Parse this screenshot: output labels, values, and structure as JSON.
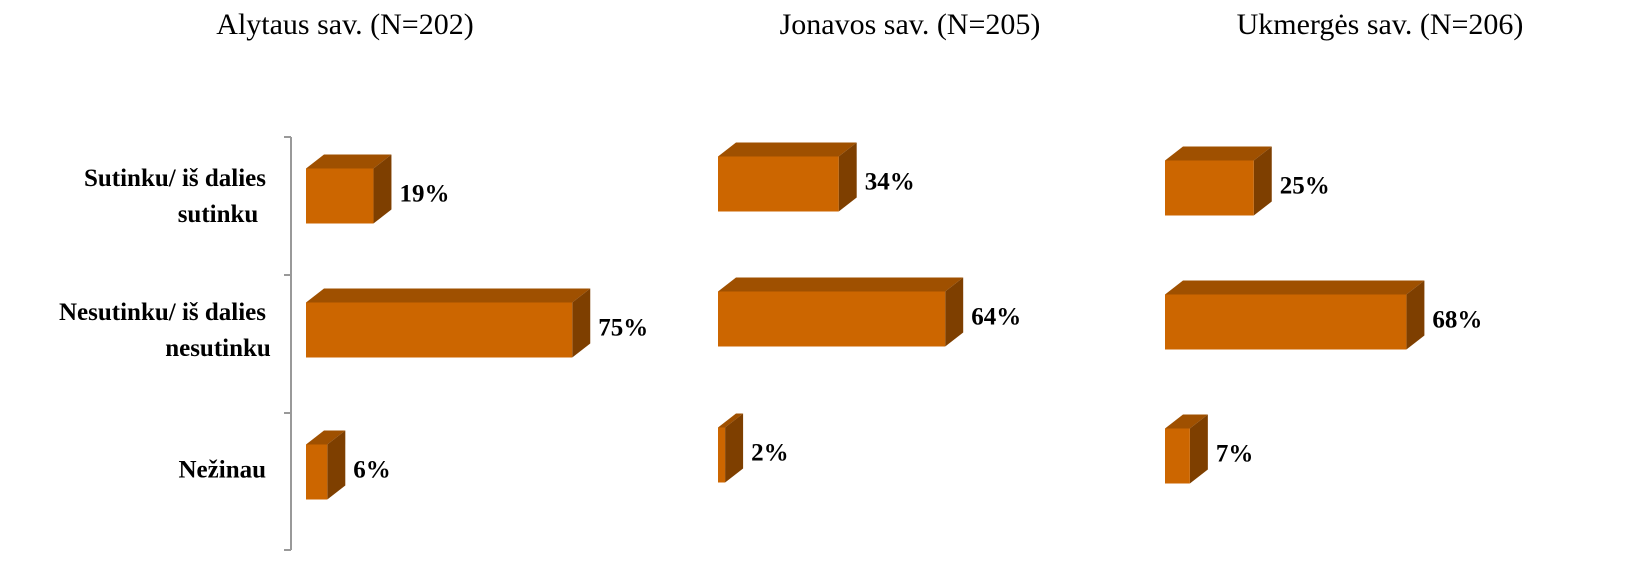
{
  "chart_data": [
    {
      "type": "bar3d",
      "title": "Alytaus sav. (N=202)",
      "categories": [
        "Sutinku/ iš dalies sutinku",
        "Nesutinku/ iš dalies nesutinku",
        "Nežinau"
      ],
      "values": [
        19,
        75,
        6
      ],
      "value_labels": [
        "19%",
        "75%",
        "6%"
      ],
      "color": "#cc6600"
    },
    {
      "type": "bar3d",
      "title": "Jonavos sav. (N=205)",
      "values": [
        34,
        64,
        2
      ],
      "value_labels": [
        "34%",
        "64%",
        "2%"
      ],
      "color": "#cc6600"
    },
    {
      "type": "bar3d",
      "title": "Ukmergės sav. (N=206)",
      "values": [
        25,
        68,
        7
      ],
      "value_labels": [
        "25%",
        "68%",
        "7%"
      ],
      "color": "#cc6600"
    }
  ]
}
